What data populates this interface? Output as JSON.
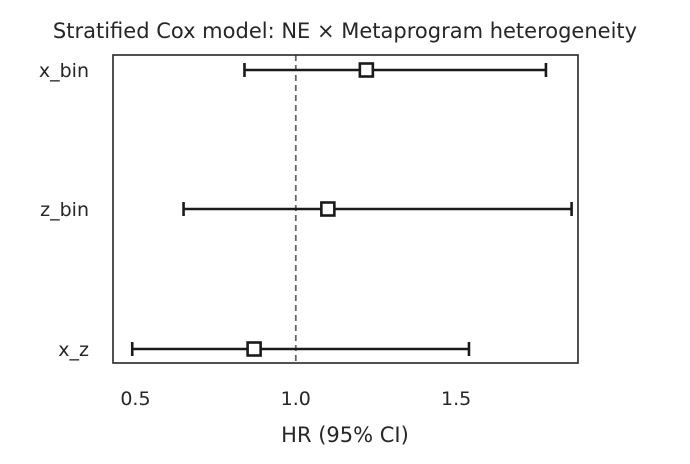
{
  "chart_data": {
    "type": "forest",
    "title": "Stratified Cox model: NE × Metaprogram heterogeneity",
    "xlabel": "HR (95% CI)",
    "ylabel": "",
    "xlim": [
      0.43,
      1.88
    ],
    "x_ticks": [
      {
        "value": 0.5,
        "label": "0.5"
      },
      {
        "value": 1.0,
        "label": "1.0"
      },
      {
        "value": 1.5,
        "label": "1.5"
      }
    ],
    "reference_line": {
      "value": 1.0,
      "style": "dashed"
    },
    "grid": false,
    "categories": [
      "x_bin",
      "z_bin",
      "x_z"
    ],
    "series": [
      {
        "points": [
          {
            "label": "x_bin",
            "hr": 1.22,
            "lower": 0.84,
            "upper": 1.78
          },
          {
            "label": "z_bin",
            "hr": 1.1,
            "lower": 0.65,
            "upper": 1.86
          },
          {
            "label": "x_z",
            "hr": 0.87,
            "lower": 0.49,
            "upper": 1.54
          }
        ]
      }
    ],
    "colors": {
      "axis": "#262626",
      "marker_edge": "#1a1a1a",
      "marker_face": "#ffffff",
      "reference_line": "#666666"
    }
  }
}
